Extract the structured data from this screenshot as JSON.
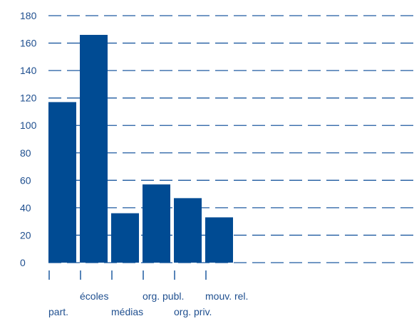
{
  "chart_data": {
    "type": "bar",
    "title": "",
    "xlabel": "",
    "ylabel": "",
    "categories": [
      "part.",
      "écoles",
      "médias",
      "org. publ.",
      "org. priv.",
      "mouv. rel."
    ],
    "values": [
      117,
      166,
      36,
      57,
      47,
      33
    ],
    "ylim": [
      0,
      180
    ],
    "yticks": [
      0,
      20,
      40,
      60,
      80,
      100,
      120,
      140,
      160,
      180
    ],
    "grid": true,
    "legend": "none",
    "colors": {
      "bar": "#004b93",
      "text": "#1f4f8f",
      "grid": "#1f5aa0"
    }
  }
}
